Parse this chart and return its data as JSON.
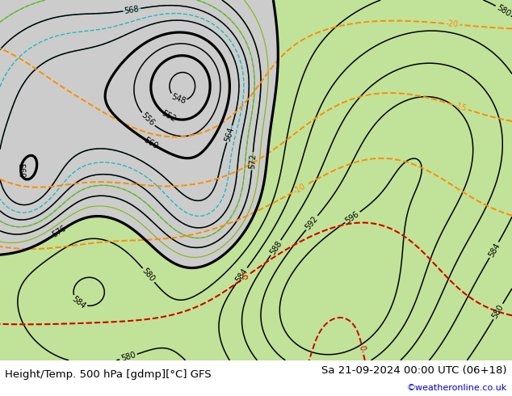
{
  "title_left": "Height/Temp. 500 hPa [gdmp][°C] GFS",
  "title_right": "Sa 21-09-2024 00:00 UTC (06+18)",
  "credit": "©weatheronline.co.uk",
  "background_color": "#ffffff",
  "height_contour_color": "#000000",
  "temp_neg_color": "#ff8c00",
  "temp_warm_color": "#cc0000",
  "cyan_contour_color": "#00b8b8",
  "lgreen_contour_color": "#7ab800",
  "bottom_text_color": "#000000",
  "credit_color": "#0000cc",
  "title_fontsize": 9.5,
  "credit_fontsize": 8,
  "lon_min": -45,
  "lon_max": 55,
  "lat_min": 25,
  "lat_max": 78
}
